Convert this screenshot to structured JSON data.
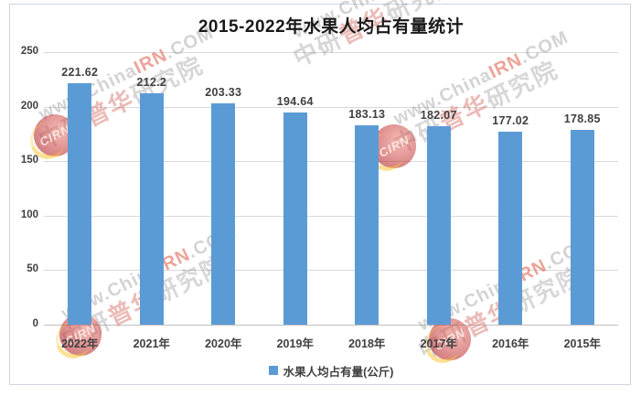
{
  "chart_data": {
    "type": "bar",
    "title": "2015-2022年水果人均占有量统计",
    "categories": [
      "2022年",
      "2021年",
      "2020年",
      "2019年",
      "2018年",
      "2017年",
      "2016年",
      "2015年"
    ],
    "values": [
      221.62,
      212.2,
      203.33,
      194.64,
      183.13,
      182.07,
      177.02,
      178.85
    ],
    "value_labels": [
      "221.62",
      "212.2",
      "203.33",
      "194.64",
      "183.13",
      "182.07",
      "177.02",
      "178.85"
    ],
    "xlabel": "",
    "ylabel": "",
    "ylim": [
      0,
      250
    ],
    "yticks": [
      0,
      50,
      100,
      150,
      200,
      250
    ],
    "grid": true,
    "legend_label": "水果人均占有量(公斤)",
    "legend_position": "bottom",
    "bar_color": "#5b9bd5"
  },
  "watermark": {
    "url_prefix": "www.China",
    "url_highlight": "IRN",
    "url_suffix": ".COM",
    "org_prefix": "中研",
    "org_highlight": "普华",
    "org_suffix": "研究院",
    "badge_text": "CIRN"
  },
  "colors": {
    "bar": "#5b9bd5",
    "gridline": "#d9d9d9",
    "axis_line": "#bfbfbf",
    "label": "#404040",
    "title": "#1a1a1a",
    "frame_border": "#ccd5e2",
    "watermark_red": "#d9604f"
  }
}
